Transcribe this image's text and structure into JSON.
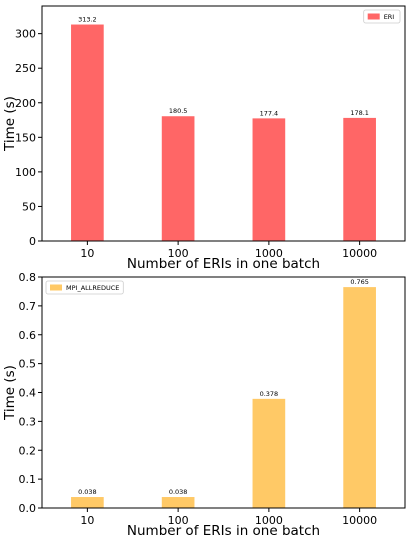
{
  "chart_data": [
    {
      "type": "bar",
      "categories": [
        "10",
        "100",
        "1000",
        "10000"
      ],
      "series": [
        {
          "name": "ERI",
          "values": [
            313.2,
            180.5,
            177.4,
            178.1
          ],
          "color": "#ff6666"
        }
      ],
      "data_labels": [
        "313.2",
        "180.5",
        "177.4",
        "178.1"
      ],
      "xlabel": "Number of ERIs in one batch",
      "ylabel": "Time (s)",
      "ylim": [
        0,
        340
      ],
      "yticks": [
        0,
        50,
        100,
        150,
        200,
        250,
        300
      ],
      "ytick_labels": [
        "0",
        "50",
        "100",
        "150",
        "200",
        "250",
        "300"
      ],
      "legend_position": "top-right",
      "grid": false
    },
    {
      "type": "bar",
      "categories": [
        "10",
        "100",
        "1000",
        "10000"
      ],
      "series": [
        {
          "name": "MPI_ALLREDUCE",
          "values": [
            0.038,
            0.038,
            0.378,
            0.765
          ],
          "color": "#ffc966"
        }
      ],
      "data_labels": [
        "0.038",
        "0.038",
        "0.378",
        "0.765"
      ],
      "xlabel": "Number of ERIs in one batch",
      "ylabel": "Time (s)",
      "ylim": [
        0,
        0.8
      ],
      "yticks": [
        0,
        0.1,
        0.2,
        0.3,
        0.4,
        0.5,
        0.6,
        0.7,
        0.8
      ],
      "ytick_labels": [
        "0.0",
        "0.1",
        "0.2",
        "0.3",
        "0.4",
        "0.5",
        "0.6",
        "0.7",
        "0.8"
      ],
      "legend_position": "top-left",
      "grid": false
    }
  ]
}
